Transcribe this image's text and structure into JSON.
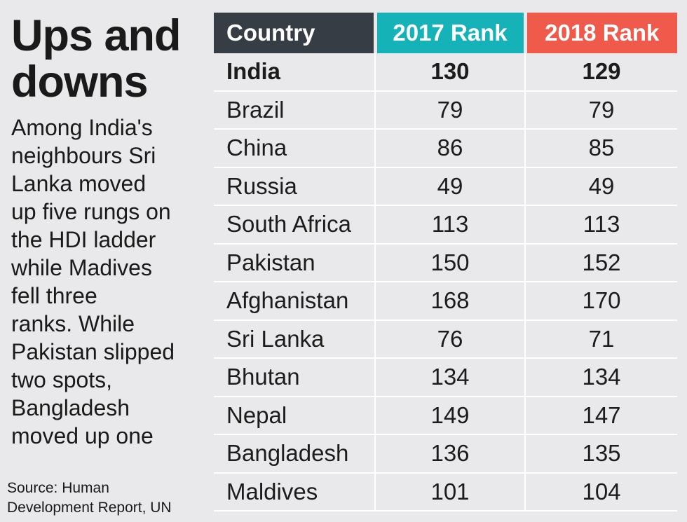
{
  "title": "Ups and\ndowns",
  "description": "Among India's\nneighbours Sri\nLanka moved\nup five rungs on\nthe HDI ladder\nwhile Madives\nfell three\nranks. While\nPakistan slipped\ntwo spots,\nBangladesh\nmoved up one",
  "source": "Source: Human\nDevelopment Report, UN",
  "colors": {
    "country_header": "#363d45",
    "rank2017_header": "#15b3b8",
    "rank2018_header": "#ef5a4b",
    "background": "#e9e9eb"
  },
  "chart_data": {
    "type": "table",
    "columns": [
      "Country",
      "2017 Rank",
      "2018 Rank"
    ],
    "rows": [
      {
        "country": "India",
        "rank_2017": 130,
        "rank_2018": 129,
        "bold": true
      },
      {
        "country": "Brazil",
        "rank_2017": 79,
        "rank_2018": 79
      },
      {
        "country": "China",
        "rank_2017": 86,
        "rank_2018": 85
      },
      {
        "country": "Russia",
        "rank_2017": 49,
        "rank_2018": 49
      },
      {
        "country": "South Africa",
        "rank_2017": 113,
        "rank_2018": 113
      },
      {
        "country": "Pakistan",
        "rank_2017": 150,
        "rank_2018": 152
      },
      {
        "country": "Afghanistan",
        "rank_2017": 168,
        "rank_2018": 170
      },
      {
        "country": "Sri Lanka",
        "rank_2017": 76,
        "rank_2018": 71
      },
      {
        "country": "Bhutan",
        "rank_2017": 134,
        "rank_2018": 134
      },
      {
        "country": "Nepal",
        "rank_2017": 149,
        "rank_2018": 147
      },
      {
        "country": "Bangladesh",
        "rank_2017": 136,
        "rank_2018": 135
      },
      {
        "country": "Maldives",
        "rank_2017": 101,
        "rank_2018": 104
      }
    ]
  }
}
